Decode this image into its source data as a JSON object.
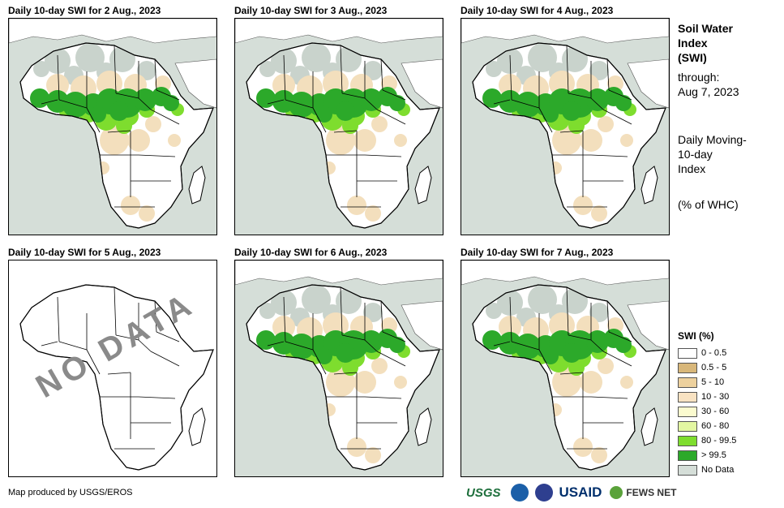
{
  "panels": [
    {
      "title": "Daily 10-day SWI for 2 Aug., 2023",
      "status": "data",
      "wet_extent": "moderate"
    },
    {
      "title": "Daily 10-day SWI for 3 Aug., 2023",
      "status": "data",
      "wet_extent": "moderate"
    },
    {
      "title": "Daily 10-day SWI for 4 Aug., 2023",
      "status": "data",
      "wet_extent": "moderate"
    },
    {
      "title": "Daily 10-day SWI for 5 Aug., 2023",
      "status": "nodata",
      "nodata_text": "NO DATA"
    },
    {
      "title": "Daily 10-day SWI for 6 Aug., 2023",
      "status": "data",
      "wet_extent": "moderate"
    },
    {
      "title": "Daily 10-day SWI for 7 Aug., 2023",
      "status": "data",
      "wet_extent": "moderate"
    }
  ],
  "side": {
    "title_lines": [
      "Soil Water",
      "Index",
      "(SWI)"
    ],
    "through_lines": [
      "through:",
      "Aug 7, 2023"
    ],
    "desc_lines": [
      "Daily Moving-",
      "10-day",
      "Index"
    ],
    "unit": "(% of WHC)"
  },
  "legend": {
    "title": "SWI (%)",
    "items": [
      {
        "label": "0 - 0.5",
        "color": "#ffffff"
      },
      {
        "label": "0.5 - 5",
        "color": "#d8b77a"
      },
      {
        "label": "5 - 10",
        "color": "#edd19e"
      },
      {
        "label": "10 - 30",
        "color": "#f8e2c2"
      },
      {
        "label": "30 - 60",
        "color": "#fbfbcf"
      },
      {
        "label": "60 - 80",
        "color": "#e3f7a2"
      },
      {
        "label": "80 - 99.5",
        "color": "#7edd2e"
      },
      {
        "label": "> 99.5",
        "color": "#2ca92a"
      },
      {
        "label": "No Data",
        "color": "#d5ded8"
      }
    ]
  },
  "credit": "Map produced by USGS/EROS",
  "logos": {
    "usgs": "USGS",
    "usaid": "USAID",
    "fews": "FEWS NET"
  },
  "colors": {
    "water": "#d5ded8",
    "land": "#ffffff",
    "wet": "#2ca92a",
    "wet_light": "#7edd2e",
    "dry": "#f3dfbd",
    "desert": "#c9d3cc"
  }
}
